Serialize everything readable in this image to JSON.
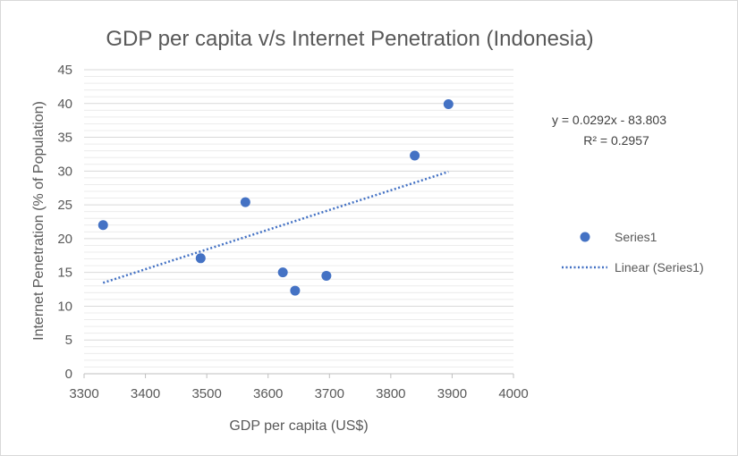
{
  "chart_data": {
    "type": "scatter",
    "title": "GDP per capita v/s Internet Penetration (Indonesia)",
    "xlabel": "GDP per capita (US$)",
    "ylabel": "Internet Penetration (% of Population)",
    "xlim": [
      3300,
      4000
    ],
    "ylim": [
      0,
      45
    ],
    "xticks": [
      3300,
      3400,
      3500,
      3600,
      3700,
      3800,
      3900,
      4000
    ],
    "yticks": [
      0,
      5,
      10,
      15,
      20,
      25,
      30,
      35,
      40,
      45
    ],
    "grid": true,
    "legend_position": "right",
    "series": [
      {
        "name": "Series1",
        "color": "#4472c4",
        "points": [
          {
            "x": 3331,
            "y": 22.0
          },
          {
            "x": 3490,
            "y": 17.1
          },
          {
            "x": 3563,
            "y": 25.4
          },
          {
            "x": 3624,
            "y": 15.0
          },
          {
            "x": 3644,
            "y": 12.3
          },
          {
            "x": 3695,
            "y": 14.5
          },
          {
            "x": 3839,
            "y": 32.3
          },
          {
            "x": 3894,
            "y": 39.9
          }
        ]
      }
    ],
    "trendline": {
      "name": "Linear (Series1)",
      "color": "#4472c4",
      "style": "dotted",
      "slope": 0.0292,
      "intercept": -83.803,
      "x_range": [
        3331,
        3894
      ],
      "equation": "y = 0.0292x - 83.803",
      "r_squared": "R² = 0.2957"
    }
  }
}
